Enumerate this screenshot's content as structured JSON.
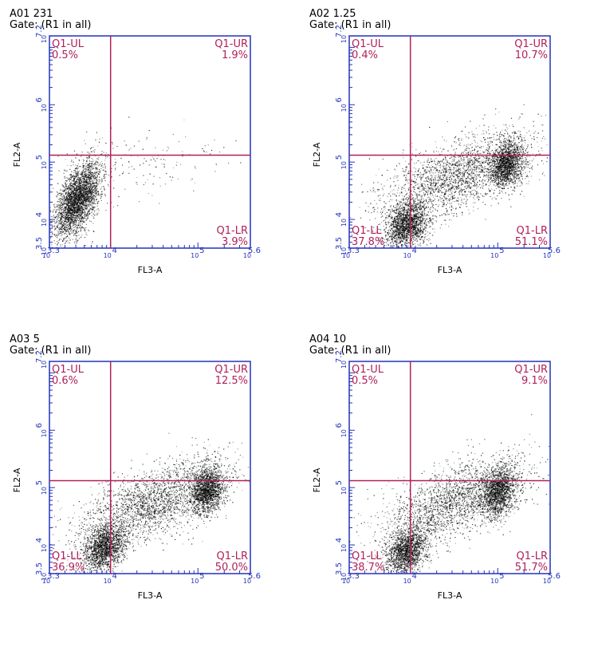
{
  "chart_data": [
    {
      "type": "scatter",
      "sample_label": "A01 231",
      "gate_label": "Gate: (R1 in all)",
      "xlabel": "FL3-A",
      "ylabel": "FL2-A",
      "x_scale": "log",
      "y_scale": "log",
      "xlim_exp": [
        3.3,
        5.6
      ],
      "ylim_exp": [
        3.5,
        7.2
      ],
      "x_tick_labels": [
        "10",
        "10",
        "10",
        "10"
      ],
      "x_tick_exps": [
        "3.3",
        "4",
        "5",
        "5.6"
      ],
      "y_tick_labels": [
        "10",
        "10",
        "10",
        "10",
        "10"
      ],
      "y_tick_exps": [
        "3.5",
        "4",
        "5",
        "6",
        "7.2"
      ],
      "gate_x_exp": 4.0,
      "gate_y_exp": 5.12,
      "quadrants": {
        "UL": {
          "name": "Q1-UL",
          "pct": "0.5%"
        },
        "UR": {
          "name": "Q1-UR",
          "pct": "1.9%"
        },
        "LL": {
          "name": "",
          "pct": ""
        },
        "LR": {
          "name": "Q1-LR",
          "pct": "3.9%"
        }
      },
      "populations": [
        {
          "cx": 3.62,
          "cy": 4.35,
          "sx": 0.13,
          "sy": 0.33,
          "n": 3200,
          "corr": 0.55
        },
        {
          "cx": 4.4,
          "cy": 5.0,
          "sx": 0.55,
          "sy": 0.3,
          "n": 160,
          "corr": 0.2
        }
      ]
    },
    {
      "type": "scatter",
      "sample_label": "A02 1.25",
      "gate_label": "Gate: (R1 in all)",
      "xlabel": "FL3-A",
      "ylabel": "FL2-A",
      "x_scale": "log",
      "y_scale": "log",
      "xlim_exp": [
        3.3,
        5.6
      ],
      "ylim_exp": [
        3.5,
        7.2
      ],
      "x_tick_labels": [
        "10",
        "10",
        "10",
        "10"
      ],
      "x_tick_exps": [
        "3.3",
        "4",
        "5",
        "5.6"
      ],
      "y_tick_labels": [
        "10",
        "10",
        "10",
        "10",
        "10"
      ],
      "y_tick_exps": [
        "3.5",
        "4",
        "5",
        "6",
        "7.2"
      ],
      "gate_x_exp": 4.0,
      "gate_y_exp": 5.12,
      "quadrants": {
        "UL": {
          "name": "Q1-UL",
          "pct": "0.4%"
        },
        "UR": {
          "name": "Q1-UR",
          "pct": "10.7%"
        },
        "LL": {
          "name": "Q1-LL",
          "pct": "37.8%"
        },
        "LR": {
          "name": "Q1-LR",
          "pct": "51.1%"
        }
      },
      "populations": [
        {
          "cx": 3.95,
          "cy": 3.9,
          "sx": 0.12,
          "sy": 0.2,
          "n": 1800,
          "corr": 0.3
        },
        {
          "cx": 5.1,
          "cy": 4.97,
          "sx": 0.1,
          "sy": 0.2,
          "n": 1700,
          "corr": 0.2
        },
        {
          "cx": 4.5,
          "cy": 4.75,
          "sx": 0.42,
          "sy": 0.38,
          "n": 2300,
          "corr": 0.6
        }
      ]
    },
    {
      "type": "scatter",
      "sample_label": "A03 5",
      "gate_label": "Gate: (R1 in all)",
      "xlabel": "FL3-A",
      "ylabel": "FL2-A",
      "x_scale": "log",
      "y_scale": "log",
      "xlim_exp": [
        3.3,
        5.6
      ],
      "ylim_exp": [
        3.5,
        7.2
      ],
      "x_tick_labels": [
        "10",
        "10",
        "10",
        "10"
      ],
      "x_tick_exps": [
        "3.3",
        "4",
        "5",
        "5.6"
      ],
      "y_tick_labels": [
        "10",
        "10",
        "10",
        "10",
        "10"
      ],
      "y_tick_exps": [
        "3.5",
        "4",
        "5",
        "6",
        "7.2"
      ],
      "gate_x_exp": 4.0,
      "gate_y_exp": 5.12,
      "quadrants": {
        "UL": {
          "name": "Q1-UL",
          "pct": "0.6%"
        },
        "UR": {
          "name": "Q1-UR",
          "pct": "12.5%"
        },
        "LL": {
          "name": "Q1-LL",
          "pct": "36.9%"
        },
        "LR": {
          "name": "Q1-LR",
          "pct": "50.0%"
        }
      },
      "populations": [
        {
          "cx": 3.92,
          "cy": 3.95,
          "sx": 0.12,
          "sy": 0.2,
          "n": 1800,
          "corr": 0.3
        },
        {
          "cx": 5.1,
          "cy": 4.97,
          "sx": 0.1,
          "sy": 0.2,
          "n": 1700,
          "corr": 0.2
        },
        {
          "cx": 4.5,
          "cy": 4.75,
          "sx": 0.42,
          "sy": 0.38,
          "n": 2400,
          "corr": 0.6
        }
      ]
    },
    {
      "type": "scatter",
      "sample_label": "A04 10",
      "gate_label": "Gate: (R1 in all)",
      "xlabel": "FL3-A",
      "ylabel": "FL2-A",
      "x_scale": "log",
      "y_scale": "log",
      "xlim_exp": [
        3.3,
        5.6
      ],
      "ylim_exp": [
        3.5,
        7.2
      ],
      "x_tick_labels": [
        "10",
        "10",
        "10",
        "10"
      ],
      "x_tick_exps": [
        "3.3",
        "4",
        "5",
        "5.6"
      ],
      "y_tick_labels": [
        "10",
        "10",
        "10",
        "10",
        "10"
      ],
      "y_tick_exps": [
        "3.5",
        "4",
        "5",
        "6",
        "7.2"
      ],
      "gate_x_exp": 4.0,
      "gate_y_exp": 5.12,
      "quadrants": {
        "UL": {
          "name": "Q1-UL",
          "pct": "0.5%"
        },
        "UR": {
          "name": "Q1-UR",
          "pct": "9.1%"
        },
        "LL": {
          "name": "Q1-LL",
          "pct": "38.7%"
        },
        "LR": {
          "name": "Q1-LR",
          "pct": "51.7%"
        }
      },
      "populations": [
        {
          "cx": 3.95,
          "cy": 3.9,
          "sx": 0.12,
          "sy": 0.2,
          "n": 1800,
          "corr": 0.3
        },
        {
          "cx": 5.0,
          "cy": 4.95,
          "sx": 0.1,
          "sy": 0.22,
          "n": 1600,
          "corr": 0.2
        },
        {
          "cx": 4.5,
          "cy": 4.75,
          "sx": 0.42,
          "sy": 0.38,
          "n": 2200,
          "corr": 0.6
        }
      ]
    }
  ]
}
